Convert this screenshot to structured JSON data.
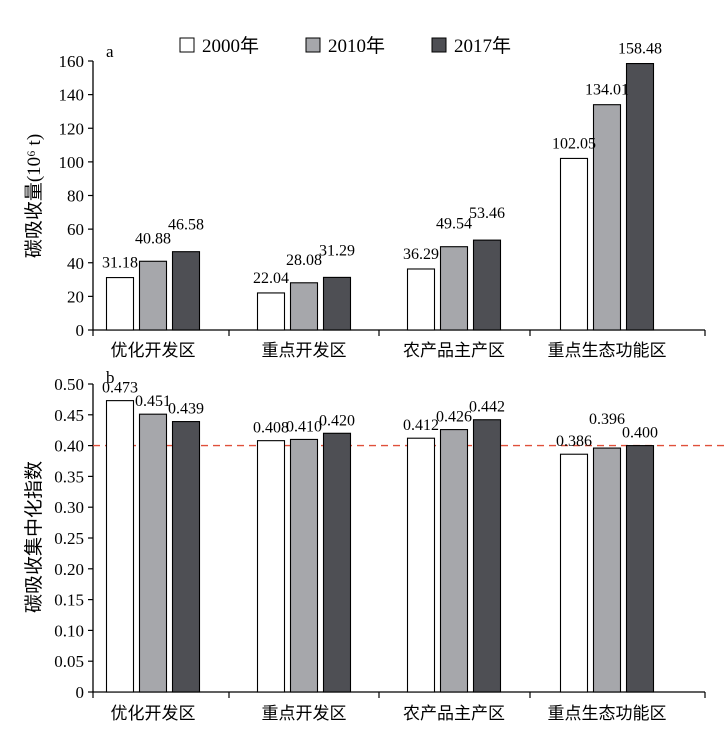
{
  "legend": {
    "items": [
      {
        "label": "2000年",
        "color": "#ffffff"
      },
      {
        "label": "2010年",
        "color": "#a6a7ab"
      },
      {
        "label": "2017年",
        "color": "#4e4f54"
      }
    ]
  },
  "chart_data": [
    {
      "panel": "a",
      "type": "bar",
      "ylabel": "碳吸收量(10⁶ t)",
      "ylim": [
        0,
        160
      ],
      "yticks": [
        "0",
        "20",
        "40",
        "60",
        "80",
        "100",
        "120",
        "140",
        "160"
      ],
      "categories": [
        "优化开发区",
        "重点开发区",
        "农产品主产区",
        "重点生态功能区"
      ],
      "series": [
        {
          "name": "2000年",
          "values": [
            31.18,
            22.04,
            36.29,
            102.05
          ],
          "labels": [
            "31.18",
            "22.04",
            "36.29",
            "102.05"
          ]
        },
        {
          "name": "2010年",
          "values": [
            40.88,
            28.08,
            49.54,
            134.01
          ],
          "labels": [
            "40.88",
            "28.08",
            "49.54",
            "134.01"
          ]
        },
        {
          "name": "2017年",
          "values": [
            46.58,
            31.29,
            53.46,
            158.48
          ],
          "labels": [
            "46.58",
            "31.29",
            "53.46",
            "158.48"
          ]
        }
      ],
      "legend": "top"
    },
    {
      "panel": "b",
      "type": "bar",
      "ylabel": "碳吸收集中化指数",
      "ylim": [
        0,
        0.5
      ],
      "yticks": [
        "0",
        "0.05",
        "0.10",
        "0.15",
        "0.20",
        "0.25",
        "0.30",
        "0.35",
        "0.40",
        "0.45",
        "0.50"
      ],
      "categories": [
        "优化开发区",
        "重点开发区",
        "农产品主产区",
        "重点生态功能区"
      ],
      "series": [
        {
          "name": "2000年",
          "values": [
            0.473,
            0.408,
            0.412,
            0.386
          ],
          "labels": [
            "0.473",
            "0.408",
            "0.412",
            "0.386"
          ]
        },
        {
          "name": "2010年",
          "values": [
            0.451,
            0.41,
            0.426,
            0.396
          ],
          "labels": [
            "0.451",
            "0.410",
            "0.426",
            "0.396"
          ]
        },
        {
          "name": "2017年",
          "values": [
            0.439,
            0.42,
            0.442,
            0.4
          ],
          "labels": [
            "0.439",
            "0.420",
            "0.442",
            "0.400"
          ]
        }
      ],
      "reference_line": {
        "value": 0.4,
        "color": "#e0503a",
        "style": "dashed"
      }
    }
  ]
}
